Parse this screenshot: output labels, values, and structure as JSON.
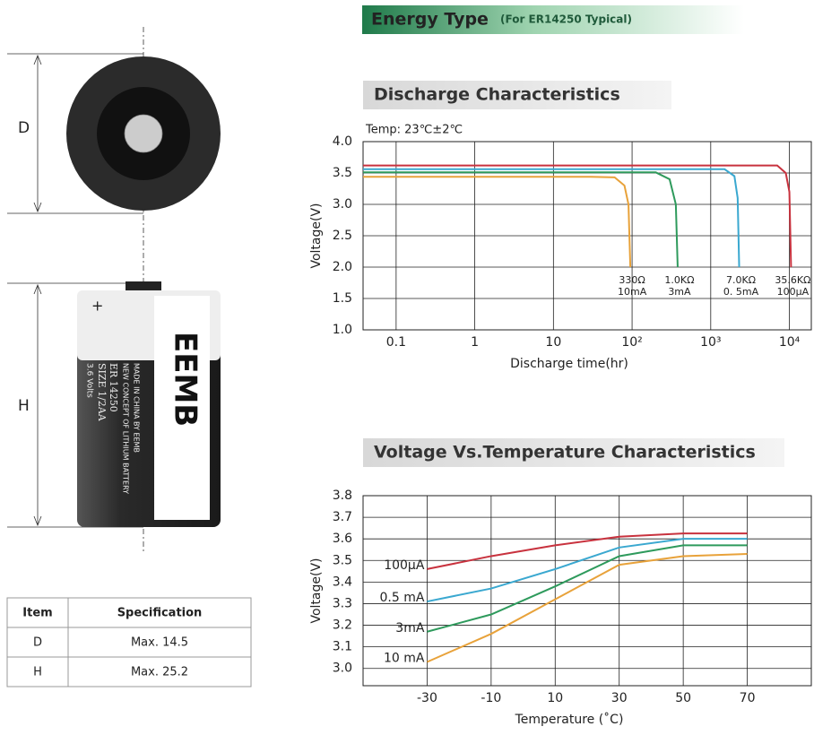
{
  "header": {
    "title": "Energy Type",
    "subtitle": "(For ER14250 Typical)"
  },
  "drawing": {
    "d_label": "D",
    "h_label": "H",
    "battery": {
      "plus": "+",
      "brand": "EEMB",
      "made": "MADE IN CHINA BY EEMB",
      "concept": "NEW CONCEPT OF LITHIUM BATTERY",
      "model": "ER 14250",
      "size": "SIZE 1/2AA",
      "volts": "3.6 Volts"
    }
  },
  "table": {
    "header": [
      "Item",
      "Specification"
    ],
    "rows": [
      [
        "D",
        "Max. 14.5"
      ],
      [
        "H",
        "Max. 25.2"
      ]
    ]
  },
  "chart_data": [
    {
      "type": "line",
      "title": "Discharge Characteristics",
      "annotation": "Temp: 23℃±2℃",
      "x_label": "Discharge time(hr)",
      "y_label": "Voltage(V)",
      "xscale": "log",
      "grid": true,
      "xlim": [
        0.038,
        19000
      ],
      "ylim": [
        1.0,
        4.0
      ],
      "xticks": [
        0.1,
        1,
        10,
        {
          "value": 100,
          "label": "10²"
        },
        {
          "value": 1000,
          "label": "10³"
        },
        {
          "value": 10000,
          "label": "10⁴"
        }
      ],
      "yticks": [
        {
          "value": 1.0,
          "label": "1.0"
        },
        1.5,
        {
          "value": 2.0,
          "label": "2.0"
        },
        2.5,
        {
          "value": 3.0,
          "label": "3.0"
        },
        3.5,
        {
          "value": 4.0,
          "label": "4.0"
        }
      ],
      "series": [
        {
          "name": "330Ω",
          "sublabel": "10mA",
          "color": "#e8a23a",
          "x": [
            0.038,
            30,
            60,
            80,
            90,
            95
          ],
          "values": [
            3.44,
            3.44,
            3.43,
            3.3,
            3.0,
            2.0
          ]
        },
        {
          "name": "1.0KΩ",
          "sublabel": "3mA",
          "color": "#2e9a5c",
          "x": [
            0.038,
            200,
            300,
            360,
            380
          ],
          "values": [
            3.51,
            3.51,
            3.4,
            3.0,
            2.0
          ]
        },
        {
          "name": "7.0KΩ",
          "sublabel": "0. 5mA",
          "color": "#3aa8d0",
          "x": [
            0.038,
            1500,
            2000,
            2200,
            2300
          ],
          "values": [
            3.56,
            3.56,
            3.45,
            3.1,
            2.0
          ]
        },
        {
          "name": "35.6KΩ",
          "sublabel": "100μA",
          "color": "#c8323e",
          "x": [
            0.038,
            7000,
            9000,
            10000,
            10500
          ],
          "values": [
            3.62,
            3.62,
            3.5,
            3.2,
            2.0
          ]
        }
      ]
    },
    {
      "type": "line",
      "title": "Voltage Vs.Temperature Characteristics",
      "x_label": "Temperature (˚C)",
      "y_label": "Voltage(V)",
      "grid": true,
      "xlim": [
        -50,
        90
      ],
      "ylim": [
        2.92,
        3.8
      ],
      "xticks": [
        -30,
        -10,
        10,
        30,
        50,
        70
      ],
      "yticks": [
        {
          "value": 3.0,
          "label": "3.0"
        },
        3.1,
        3.2,
        3.3,
        3.4,
        3.5,
        3.6,
        3.7,
        3.8
      ],
      "x": [
        -30,
        -10,
        10,
        30,
        50,
        70
      ],
      "series": [
        {
          "name": "100μA",
          "color": "#c8323e",
          "values": [
            3.46,
            3.52,
            3.57,
            3.61,
            3.625,
            3.625
          ]
        },
        {
          "name": "0.5 mA",
          "color": "#3aa8d0",
          "values": [
            3.31,
            3.37,
            3.46,
            3.56,
            3.6,
            3.6
          ]
        },
        {
          "name": "3mA",
          "color": "#2e9a5c",
          "values": [
            3.17,
            3.25,
            3.38,
            3.52,
            3.57,
            3.57
          ]
        },
        {
          "name": "10 mA",
          "color": "#e8a23a",
          "values": [
            3.03,
            3.16,
            3.32,
            3.48,
            3.52,
            3.53
          ]
        }
      ]
    }
  ]
}
